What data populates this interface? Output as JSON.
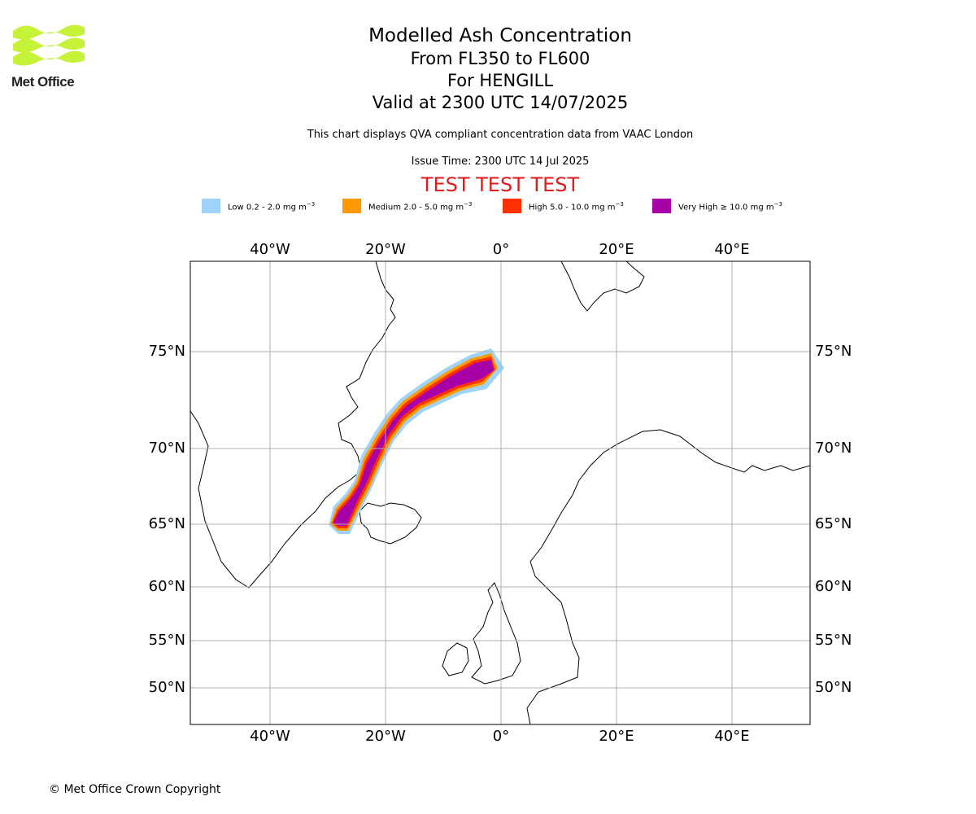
{
  "logo": {
    "text": "Met Office",
    "color": "#c6f23a"
  },
  "titles": {
    "main": "Modelled Ash Concentration",
    "levels": "From FL350 to FL600",
    "volcano": "For HENGILL",
    "valid": "Valid at 2300 UTC 14/07/2025"
  },
  "subtitle": "This chart displays QVA compliant concentration data from VAAC London",
  "issue_time": "Issue Time: 2300 UTC 14 Jul 2025",
  "test_banner": "TEST TEST TEST",
  "legend": [
    {
      "label": "Low 0.2 - 2.0 mg m",
      "sup": "−3",
      "color": "#9fd3fa"
    },
    {
      "label": "Medium 2.0 - 5.0 mg m",
      "sup": "−3",
      "color": "#ff9900"
    },
    {
      "label": "High 5.0 - 10.0 mg m",
      "sup": "−3",
      "color": "#ff3000"
    },
    {
      "label": "Very High  ≥  10.0 mg m",
      "sup": "−3",
      "color": "#a800a8"
    }
  ],
  "map": {
    "longitude_ticks": [
      "40°W",
      "20°W",
      "0°",
      "20°E",
      "40°E"
    ],
    "latitude_ticks": [
      "75°N",
      "70°N",
      "65°N",
      "60°N",
      "55°N",
      "50°N"
    ],
    "gridlines": true
  },
  "copyright": "© Met Office Crown Copyright"
}
